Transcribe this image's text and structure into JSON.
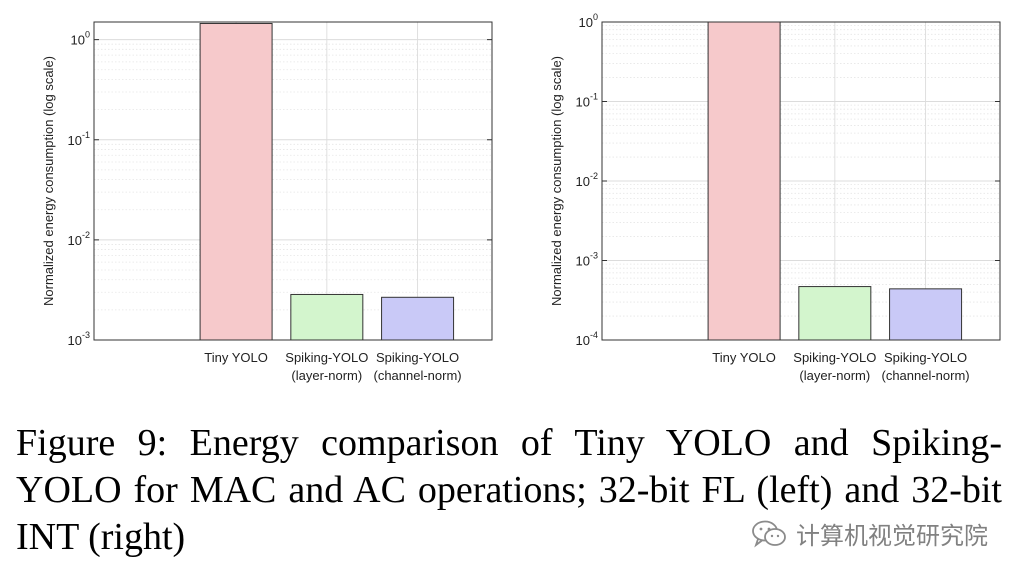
{
  "chart_data": [
    {
      "type": "bar",
      "panel": "left",
      "ylabel": "Normalized energy consumption (log scale)",
      "yscale": "log",
      "ylim": [
        0.001,
        1.5
      ],
      "ytick_values": [
        0.001,
        0.01,
        0.1,
        1
      ],
      "ytick_exponents": [
        "-3",
        "-2",
        "-1",
        "0"
      ],
      "ytick_base": "10",
      "grid": true,
      "categories": [
        [
          "Tiny YOLO"
        ],
        [
          "Spiking-YOLO",
          "(layer-norm)"
        ],
        [
          "Spiking-YOLO",
          "(channel-norm)"
        ]
      ],
      "values": [
        1.45,
        0.00285,
        0.00267
      ],
      "colors": [
        "#f6c9cb",
        "#d3f5cd",
        "#c9c9f7"
      ]
    },
    {
      "type": "bar",
      "panel": "right",
      "ylabel": "Normalized energy consumption (log scale)",
      "yscale": "log",
      "ylim": [
        0.0001,
        1
      ],
      "ytick_values": [
        0.0001,
        0.001,
        0.01,
        0.1,
        1
      ],
      "ytick_exponents": [
        "-4",
        "-3",
        "-2",
        "-1",
        "0"
      ],
      "ytick_base": "10",
      "grid": true,
      "categories": [
        [
          "Tiny YOLO"
        ],
        [
          "Spiking-YOLO",
          "(layer-norm)"
        ],
        [
          "Spiking-YOLO",
          "(channel-norm)"
        ]
      ],
      "values": [
        1.0,
        0.00047,
        0.00044
      ],
      "colors": [
        "#f6c9cb",
        "#d3f5cd",
        "#c9c9f7"
      ]
    }
  ],
  "caption": "Figure 9: Energy comparison of Tiny YOLO and Spiking-YOLO for MAC and AC operations; 32-bit FL (left) and 32-bit INT (right)",
  "watermark": {
    "text": "计算机视觉研究院",
    "icon": "wechat-icon"
  }
}
